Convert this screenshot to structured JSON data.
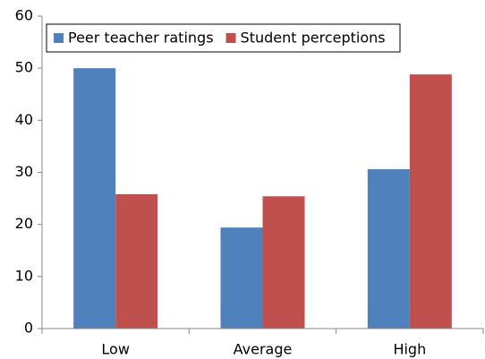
{
  "chart_data": {
    "type": "bar",
    "categories": [
      "Low",
      "Average",
      "High"
    ],
    "series": [
      {
        "name": "Peer teacher ratings",
        "color": "#4f81bd",
        "values": [
          50,
          19.4,
          30.6
        ]
      },
      {
        "name": "Student perceptions",
        "color": "#c0504d",
        "values": [
          25.8,
          25.4,
          48.8
        ]
      }
    ],
    "ylim": [
      0,
      60
    ],
    "yticks": [
      0,
      10,
      20,
      30,
      40,
      50,
      60
    ],
    "grid": false,
    "legend": "top-left"
  }
}
